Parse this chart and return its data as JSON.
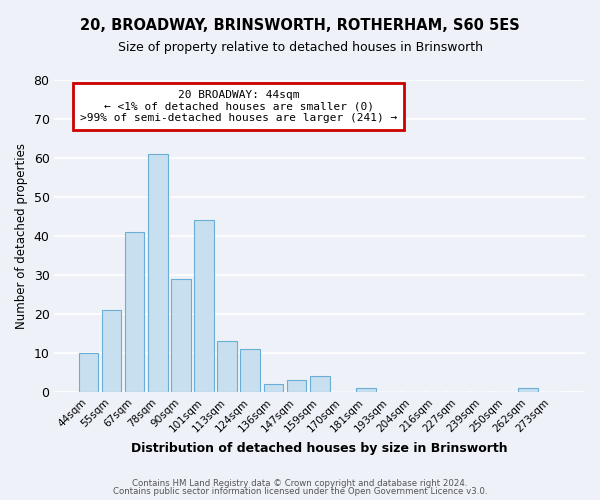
{
  "title": "20, BROADWAY, BRINSWORTH, ROTHERHAM, S60 5ES",
  "subtitle": "Size of property relative to detached houses in Brinsworth",
  "xlabel": "Distribution of detached houses by size in Brinsworth",
  "ylabel": "Number of detached properties",
  "bar_color": "#c8dff0",
  "bar_edge_color": "#6aaed6",
  "background_color": "#eef2f8",
  "grid_color": "#ffffff",
  "categories": [
    "44sqm",
    "55sqm",
    "67sqm",
    "78sqm",
    "90sqm",
    "101sqm",
    "113sqm",
    "124sqm",
    "136sqm",
    "147sqm",
    "159sqm",
    "170sqm",
    "181sqm",
    "193sqm",
    "204sqm",
    "216sqm",
    "227sqm",
    "239sqm",
    "250sqm",
    "262sqm",
    "273sqm"
  ],
  "values": [
    10,
    21,
    41,
    61,
    29,
    44,
    13,
    11,
    2,
    3,
    4,
    0,
    1,
    0,
    0,
    0,
    0,
    0,
    0,
    1,
    0
  ],
  "ylim": [
    0,
    80
  ],
  "yticks": [
    0,
    10,
    20,
    30,
    40,
    50,
    60,
    70,
    80
  ],
  "annotation_line1": "20 BROADWAY: 44sqm",
  "annotation_line2": "← <1% of detached houses are smaller (0)",
  "annotation_line3": ">99% of semi-detached houses are larger (241) →",
  "annotation_box_color": "#ffffff",
  "annotation_box_edge_color": "#cc0000",
  "footer_line1": "Contains HM Land Registry data © Crown copyright and database right 2024.",
  "footer_line2": "Contains public sector information licensed under the Open Government Licence v3.0."
}
